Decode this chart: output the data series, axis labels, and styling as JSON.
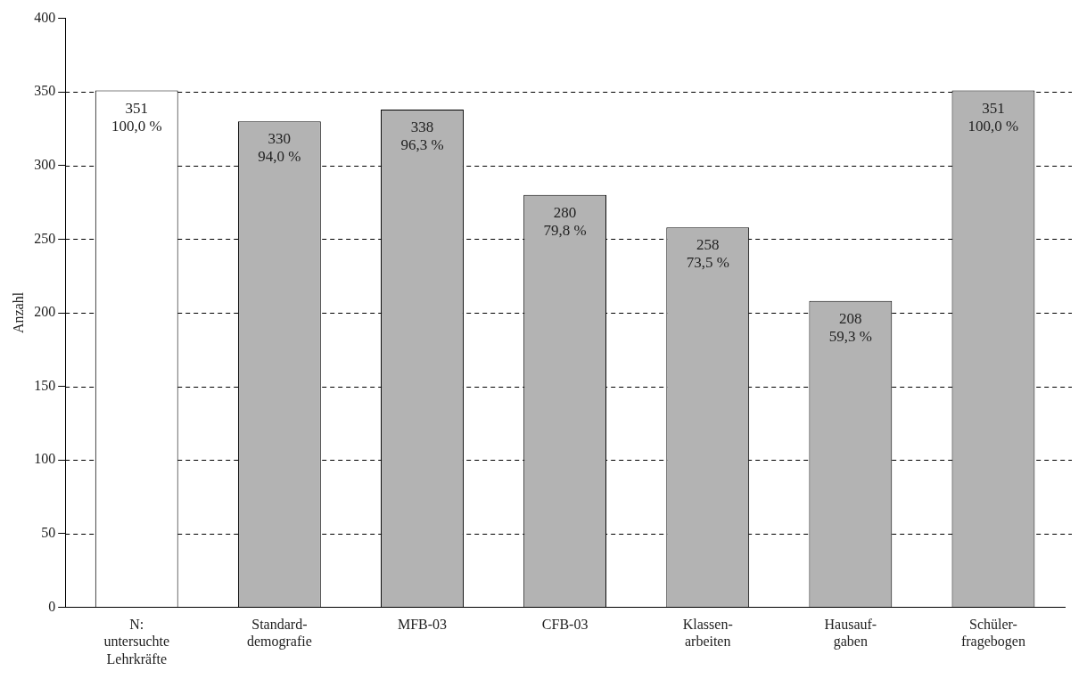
{
  "chart_data": {
    "type": "bar",
    "ylabel": "Anzahl",
    "categories": [
      "N:\nuntersuchte\nLehrkräfte",
      "Standard-\ndemografie",
      "MFB-03",
      "CFB-03",
      "Klassen-\narbeiten",
      "Hausauf-\ngaben",
      "Schüler-\nfragebogen"
    ],
    "values": [
      351,
      330,
      338,
      280,
      258,
      208,
      351
    ],
    "colors": [
      "#ffffff",
      "#b3b3b3",
      "#b3b3b3",
      "#b3b3b3",
      "#b3b3b3",
      "#b3b3b3",
      "#b3b3b3"
    ],
    "data_labels": true,
    "annotations": [
      {
        "text": "100,0 %",
        "x": "N:\nuntersuchte\nLehrkräfte",
        "y": 351
      },
      {
        "text": "94,0 %",
        "x": "Standard-\ndemografie",
        "y": 330
      },
      {
        "text": "96,3 %",
        "x": "MFB-03",
        "y": 338
      },
      {
        "text": "79,8 %",
        "x": "CFB-03",
        "y": 280
      },
      {
        "text": "73,5 %",
        "x": "Klassen-\narbeiten",
        "y": 258
      },
      {
        "text": "59,3 %",
        "x": "Hausauf-\ngaben",
        "y": 208
      },
      {
        "text": "100,0 %",
        "x": "Schüler-\nfragebogen",
        "y": 351
      }
    ],
    "ylim": [
      0,
      400
    ],
    "yticks": [
      0,
      50,
      100,
      150,
      200,
      250,
      300,
      350,
      400
    ],
    "grid": "y",
    "line_style": "dashed"
  }
}
